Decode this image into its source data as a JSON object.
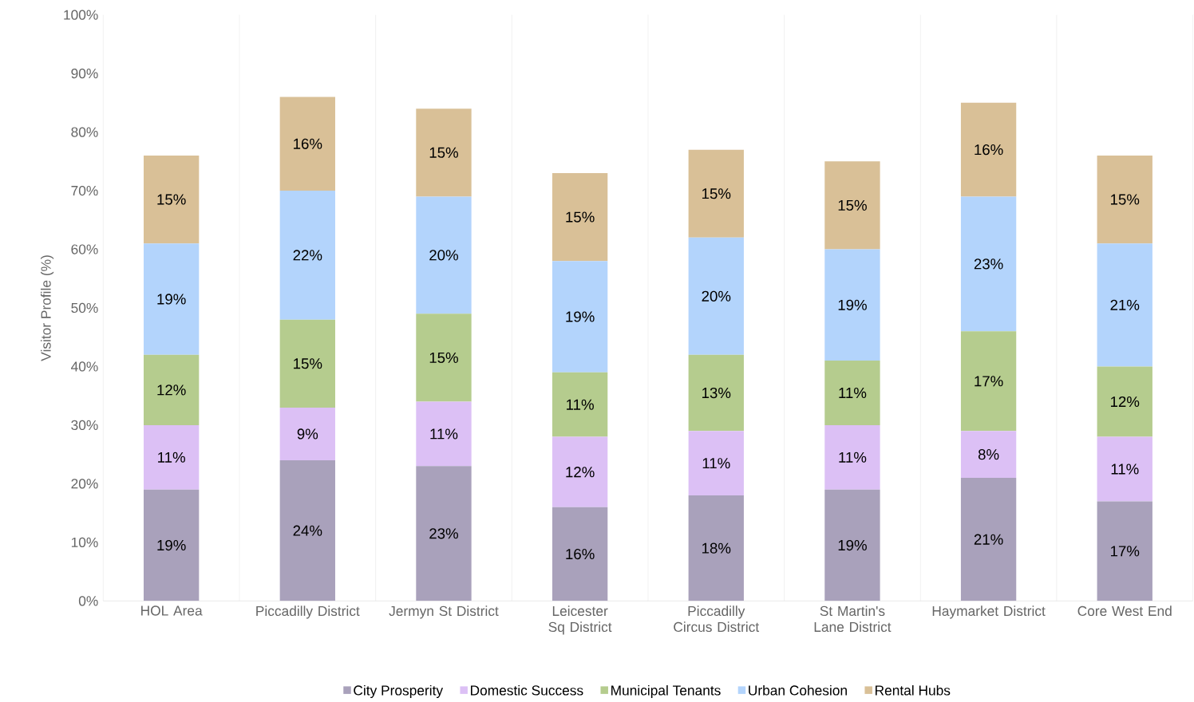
{
  "chart_data": {
    "type": "bar",
    "stacked": true,
    "ylabel": "Visitor Profile (%)",
    "categories": [
      "HOL Area",
      "Piccadilly District",
      "Jermyn St District",
      "Leicester Sq District",
      "Piccadilly Circus District",
      "St Martin's Lane District",
      "Haymarket District",
      "Core West End"
    ],
    "series": [
      {
        "name": "City Prosperity",
        "color": "#a9a1bb",
        "values": [
          19,
          24,
          23,
          16,
          18,
          19,
          21,
          17
        ],
        "value_labels": [
          "19%",
          "24%",
          "23%",
          "16%",
          "18%",
          "19%",
          "21%",
          "17%"
        ]
      },
      {
        "name": "Domestic Success",
        "color": "#dcc0f5",
        "values": [
          11,
          9,
          11,
          12,
          11,
          11,
          8,
          11
        ],
        "value_labels": [
          "11%",
          "9%",
          "11%",
          "12%",
          "11%",
          "11%",
          "8%",
          "11%"
        ]
      },
      {
        "name": "Municipal Tenants",
        "color": "#b5cc8e",
        "values": [
          12,
          15,
          15,
          11,
          13,
          11,
          17,
          12
        ],
        "value_labels": [
          "12%",
          "15%",
          "15%",
          "11%",
          "13%",
          "11%",
          "17%",
          "12%"
        ]
      },
      {
        "name": "Urban Cohesion",
        "color": "#b3d4fc",
        "values": [
          19,
          22,
          20,
          19,
          20,
          19,
          23,
          21
        ],
        "value_labels": [
          "19%",
          "22%",
          "20%",
          "19%",
          "20%",
          "19%",
          "23%",
          "21%"
        ]
      },
      {
        "name": "Rental Hubs",
        "color": "#d9c097",
        "values": [
          15,
          16,
          15,
          15,
          15,
          15,
          16,
          15
        ],
        "value_labels": [
          "15%",
          "16%",
          "15%",
          "15%",
          "15%",
          "15%",
          "16%",
          "15%"
        ]
      }
    ],
    "ylim": [
      0,
      100
    ],
    "yticks": [
      {
        "value": 0,
        "label": "0%"
      },
      {
        "value": 10,
        "label": "10%"
      },
      {
        "value": 20,
        "label": "20%"
      },
      {
        "value": 30,
        "label": "30%"
      },
      {
        "value": 40,
        "label": "40%"
      },
      {
        "value": 50,
        "label": "50%"
      },
      {
        "value": 60,
        "label": "60%"
      },
      {
        "value": 70,
        "label": "70%"
      },
      {
        "value": 80,
        "label": "80%"
      },
      {
        "value": 90,
        "label": "90%"
      },
      {
        "value": 100,
        "label": "100%"
      }
    ],
    "grid": "x",
    "legend": "bottom"
  }
}
